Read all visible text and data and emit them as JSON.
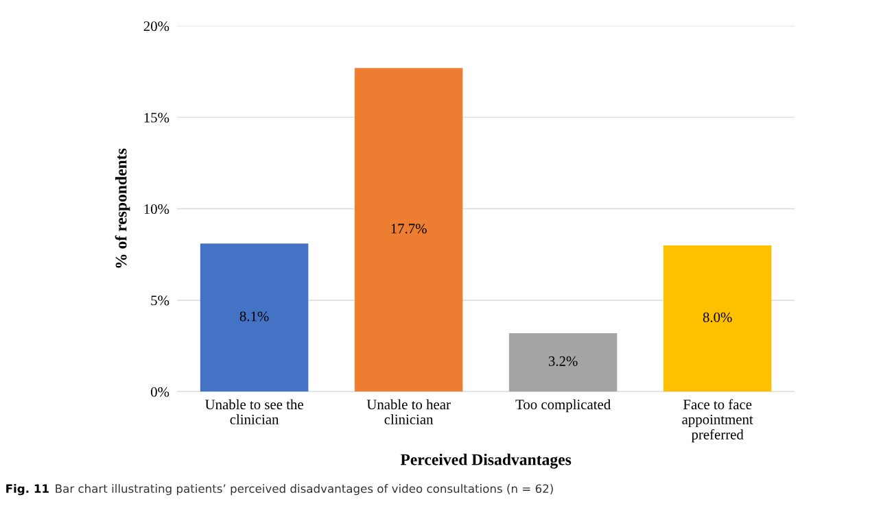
{
  "chart_data": {
    "type": "bar",
    "xlabel": "Perceived Disadvantages",
    "ylabel": "% of respondents",
    "categories": [
      "Unable to see the\nclinician",
      "Unable to hear\nclinician",
      "Too complicated",
      "Face to face\nappointment\npreferred"
    ],
    "values": [
      8.1,
      17.7,
      3.2,
      8.0
    ],
    "colors": [
      "#4472c4",
      "#ed7d31",
      "#a5a5a5",
      "#ffc000"
    ],
    "value_labels": [
      "8.1%",
      "17.7%",
      "3.2%",
      "8.0%"
    ],
    "ylim": [
      0,
      20
    ],
    "yticks": [
      {
        "value": 0,
        "label": "0%"
      },
      {
        "value": 5,
        "label": "5%"
      },
      {
        "value": 10,
        "label": "10%"
      },
      {
        "value": 15,
        "label": "15%"
      },
      {
        "value": 20,
        "label": "20%"
      }
    ],
    "grid": "y",
    "annotations": [
      "Fig. 11",
      "Bar chart illustrating patients’ perceived disadvantages of video consultations (n = 62)"
    ]
  }
}
